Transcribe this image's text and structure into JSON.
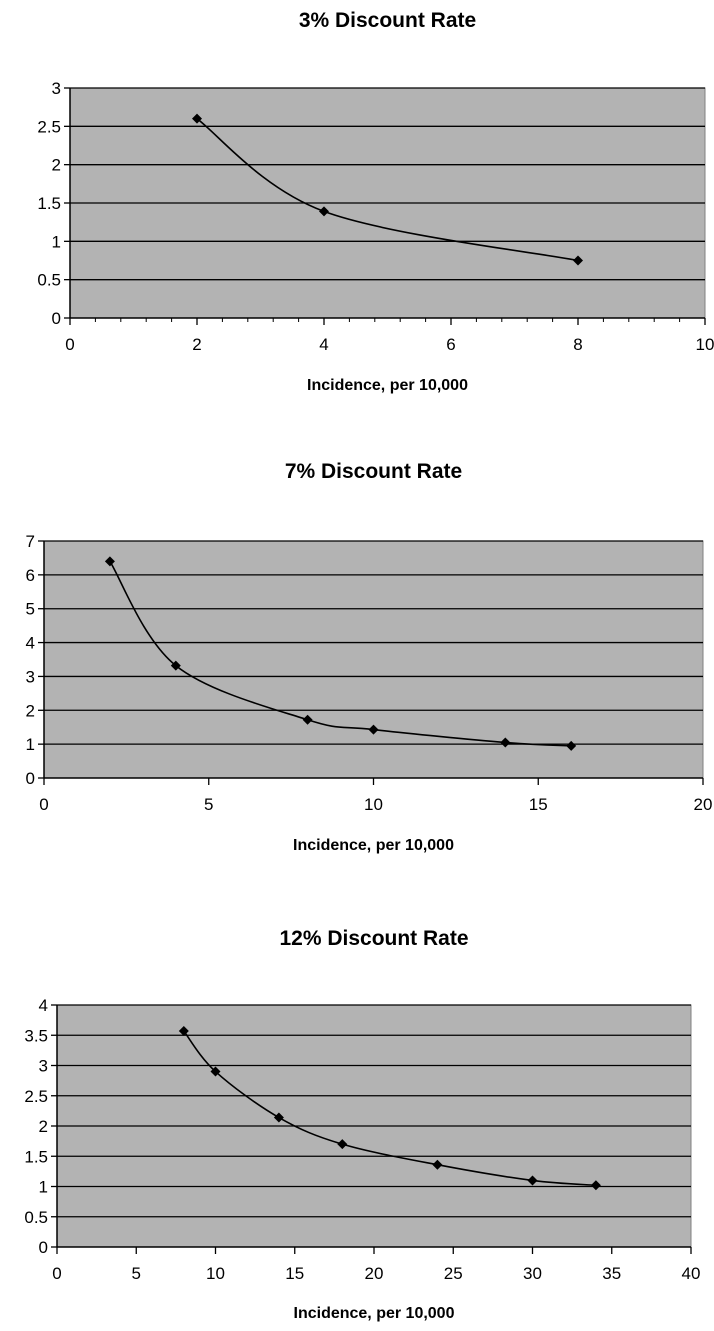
{
  "chart_data": [
    {
      "type": "line",
      "title": "3%  Discount Rate",
      "xlabel": "Incidence, per 10,000",
      "ylabel": "",
      "xlim": [
        0,
        10
      ],
      "ylim": [
        0,
        3
      ],
      "x_ticks": [
        0,
        2,
        4,
        6,
        8,
        10
      ],
      "x_tick_labels": [
        "0",
        "2",
        "4",
        "6",
        "8",
        "10"
      ],
      "y_ticks": [
        0,
        0.5,
        1,
        1.5,
        2,
        2.5,
        3
      ],
      "y_tick_labels": [
        "0",
        "0.5",
        "1",
        "1.5",
        "2",
        "2.5",
        "3"
      ],
      "x_minor_step": 0.4,
      "grid": true,
      "smooth": true,
      "plot_bg": "#b3b3b3",
      "series": [
        {
          "x": [
            2,
            4,
            8
          ],
          "values": [
            2.6,
            1.39,
            0.75
          ],
          "color": "#000000",
          "marker": "diamond"
        }
      ]
    },
    {
      "type": "line",
      "title": "7%  Discount Rate",
      "xlabel": "Incidence, per 10,000",
      "ylabel": "",
      "xlim": [
        0,
        20
      ],
      "ylim": [
        0,
        7
      ],
      "x_ticks": [
        0,
        5,
        10,
        15,
        20
      ],
      "x_tick_labels": [
        "0",
        "5",
        "10",
        "15",
        "20"
      ],
      "y_ticks": [
        0,
        1,
        2,
        3,
        4,
        5,
        6,
        7
      ],
      "y_tick_labels": [
        "0",
        "1",
        "2",
        "3",
        "4",
        "5",
        "6",
        "7"
      ],
      "x_minor_step": 0,
      "grid": true,
      "smooth": true,
      "plot_bg": "#b3b3b3",
      "series": [
        {
          "x": [
            2,
            4,
            8,
            10,
            14,
            16
          ],
          "values": [
            6.4,
            3.32,
            1.72,
            1.43,
            1.05,
            0.95
          ],
          "color": "#000000",
          "marker": "diamond"
        }
      ]
    },
    {
      "type": "line",
      "title": "12% Discount Rate",
      "xlabel": "Incidence, per 10,000",
      "ylabel": "",
      "xlim": [
        0,
        40
      ],
      "ylim": [
        0,
        4
      ],
      "x_ticks": [
        0,
        5,
        10,
        15,
        20,
        25,
        30,
        35,
        40
      ],
      "x_tick_labels": [
        "0",
        "5",
        "10",
        "15",
        "20",
        "25",
        "30",
        "35",
        "40"
      ],
      "y_ticks": [
        0,
        0.5,
        1,
        1.5,
        2,
        2.5,
        3,
        3.5,
        4
      ],
      "y_tick_labels": [
        "0",
        "0.5",
        "1",
        "1.5",
        "2",
        "2.5",
        "3",
        "3.5",
        "4"
      ],
      "x_minor_step": 0,
      "grid": true,
      "smooth": true,
      "plot_bg": "#b3b3b3",
      "series": [
        {
          "x": [
            8,
            10,
            14,
            18,
            24,
            30,
            34
          ],
          "values": [
            3.57,
            2.9,
            2.14,
            1.7,
            1.36,
            1.1,
            1.02
          ],
          "color": "#000000",
          "marker": "diamond"
        }
      ]
    }
  ]
}
